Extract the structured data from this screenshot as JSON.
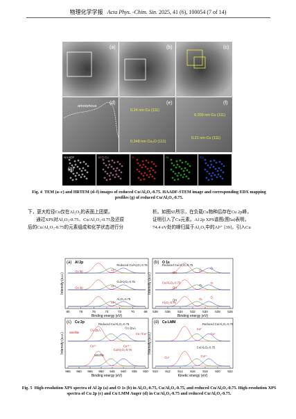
{
  "header": {
    "journal_cn": "物理化学学报",
    "journal_en": "Acta Phys. -Chim. Sin.",
    "citation": "2025, 41 (6), 100054 (7 of 14)"
  },
  "figure4": {
    "panels": [
      "(a)",
      "(b)",
      "(c)",
      "(d)",
      "(e)",
      "(f)",
      "(g)"
    ],
    "annotations": [
      "amorphous",
      "0.24 nm Cu (111)",
      "0.248 nm Cu₂O (111)",
      "0.21 nm Cu (111)",
      "0.209 nm Cu (111)"
    ],
    "map_labels": [
      "HAADF",
      "Al O Cu",
      "O",
      "Al",
      "Cu"
    ],
    "caption_label": "Fig. 4",
    "caption": "TEM (a–c) and HRTEM (d–f) images of reduced Cu/Al₂O₃-0.75. HAADF-STEM image and corresponding EDX mapping profiles (g) of reduced Cu/Al₂O₃-0.75."
  },
  "body": {
    "left": [
      "下，更大粒径Cu仅在Al₂O₃的表面上团聚。",
      "通过XPS对Al₂O₃-0.75、Cu/Al₂O₃-0.75及还原",
      "后的Cu/Al₂O₃-0.75的元素组成和化学状态进行分"
    ],
    "right": [
      "析。如图S5所示，在负载Cu物种后存在Cu 2p峰，",
      "证明引入了Cu元素。Al 2p XPS谱图(图5a)表明，",
      "74.4 eV处的峰归属于Al₂O₃中的Al³⁺ [39]，引入Cu"
    ]
  },
  "figure5": {
    "y_label": "Intensity (a.u.)",
    "panels": [
      {
        "label": "(a)",
        "title": "Al 2p",
        "x_label": "Binding energy (eV)",
        "x_ticks": [
          80,
          78,
          76,
          74,
          72,
          70,
          68
        ],
        "series_labels": [
          "Reduced Cu/Al₂O₃-0.75",
          "Cu 3p",
          "Al³⁺",
          "Cu/Al₂O₃-0.75",
          "Cu 3p",
          "Al³⁺",
          "Al₂O₃-0.75",
          "Al³⁺"
        ]
      },
      {
        "label": "(b)",
        "title": "O 1s",
        "x_label": "Binding energy (eV)",
        "x_ticks": [
          538,
          536,
          534,
          532,
          530,
          528,
          526
        ],
        "series_labels": [
          "Reduced Cu/Al₂O₃-0.75",
          "OH",
          "Oᵥ",
          "Oₗ",
          "Cu/Al₂O₃-0.75",
          "OH",
          "Oᵥ",
          "Oₗ",
          "Al₂O₃-0.75",
          "OH",
          "Oᵥ",
          "Oₗ"
        ]
      },
      {
        "label": "(c)",
        "title": "Cu 2p",
        "x_label": "Binding energy (eV)",
        "x_ticks": [
          965,
          960,
          955,
          950,
          945,
          940,
          935,
          930
        ],
        "series_labels": [
          "Reduced Cu/Al₂O₃-0.75",
          "satellite",
          "Cu 2p₁/₂",
          "Cu 2p₃/₂",
          "Cu⁺/Cu⁰",
          "Cu/Al₂O₃-0.75",
          "satellite",
          "Cu²⁺",
          "Cu²⁺"
        ]
      },
      {
        "label": "(d)",
        "title": "Cu LMM",
        "x_label": "Kinetic energy (eV)",
        "x_ticks": [
          910,
          912,
          914,
          916,
          918,
          920,
          922
        ],
        "series_labels": [
          "Reduced Cu/Al₂O₃-0.75",
          "Cu⁰",
          "Cu⁺",
          "Cu/Al₂O₃-0.75",
          "Cu⁺",
          "Cu²⁺"
        ]
      }
    ],
    "caption_label": "Fig. 5",
    "caption": "High-resolution XPS spectra of Al 2p (a) and O 1s (b) in Al₂O₃-0.75, Cu/Al₂O₃-0.75, and reduced Cu/Al₂O₃-0.75. High-resolution XPS spectra of Cu 2p (c) and Cu LMM Auger (d) in Cu/Al₂O₃-0.75 and reduced Cu/Al₂O₃-0.75."
  }
}
